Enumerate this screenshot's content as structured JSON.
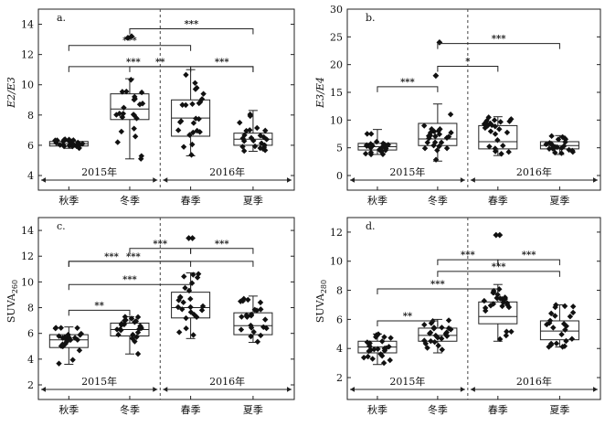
{
  "chart_data": [
    {
      "type": "box",
      "panel_letter": "a.",
      "ylabel": "E2/E3",
      "ylabel_sub": "",
      "ylim": [
        4,
        15
      ],
      "yticks": [
        4,
        6,
        8,
        10,
        12,
        14
      ],
      "categories": [
        "秋季",
        "冬季",
        "春季",
        "夏季"
      ],
      "year_labels": [
        "2015年",
        "2016年"
      ],
      "boxes": [
        {
          "category": "秋季",
          "min": 5.8,
          "q1": 5.95,
          "median": 6.1,
          "q3": 6.25,
          "max": 6.4
        },
        {
          "category": "冬季",
          "min": 5.1,
          "q1": 7.7,
          "median": 8.4,
          "q3": 9.4,
          "max": 10.4
        },
        {
          "category": "春季",
          "min": 5.3,
          "q1": 6.6,
          "median": 7.8,
          "q3": 9.0,
          "max": 11.0
        },
        {
          "category": "夏季",
          "min": 5.6,
          "q1": 6.0,
          "median": 6.4,
          "q3": 6.8,
          "max": 8.3
        }
      ],
      "outliers": [
        {
          "category": "冬季",
          "value": 13.1
        },
        {
          "category": "冬季",
          "value": 13.2
        }
      ],
      "brackets": [
        {
          "from": "冬季",
          "to": "夏季",
          "y": 13.7,
          "label": "***"
        },
        {
          "from": "秋季",
          "to": "春季",
          "y": 12.6,
          "label": "***"
        },
        {
          "from": "秋季",
          "to": "夏季",
          "y": 11.2,
          "label": "***"
        },
        {
          "from": "冬季",
          "to": "春季",
          "y": 11.2,
          "label": "**"
        },
        {
          "from": "春季",
          "to": "夏季",
          "y": 11.2,
          "label": "***"
        }
      ]
    },
    {
      "type": "box",
      "panel_letter": "b.",
      "ylabel": "E3/E4",
      "ylabel_sub": "",
      "ylim": [
        0,
        30
      ],
      "yticks": [
        0,
        5,
        10,
        15,
        20,
        25,
        30
      ],
      "categories": [
        "秋季",
        "冬季",
        "春季",
        "夏季"
      ],
      "year_labels": [
        "2015年",
        "2016年"
      ],
      "boxes": [
        {
          "category": "秋季",
          "min": 3.8,
          "q1": 4.6,
          "median": 5.2,
          "q3": 5.8,
          "max": 8.3
        },
        {
          "category": "冬季",
          "min": 2.6,
          "q1": 5.4,
          "median": 6.6,
          "q3": 9.4,
          "max": 12.9
        },
        {
          "category": "春季",
          "min": 3.6,
          "q1": 4.8,
          "median": 6.1,
          "q3": 9.0,
          "max": 10.6
        },
        {
          "category": "夏季",
          "min": 3.8,
          "q1": 4.8,
          "median": 5.4,
          "q3": 6.1,
          "max": 7.2
        }
      ],
      "outliers": [
        {
          "category": "冬季",
          "value": 18.0
        },
        {
          "category": "冬季",
          "value": 24.0
        }
      ],
      "brackets": [
        {
          "from": "冬季",
          "to": "夏季",
          "y": 23.8,
          "label": "***"
        },
        {
          "from": "冬季",
          "to": "春季",
          "y": 19.7,
          "label": "*"
        },
        {
          "from": "秋季",
          "to": "冬季",
          "y": 16.0,
          "label": "***"
        }
      ]
    },
    {
      "type": "box",
      "panel_letter": "c.",
      "ylabel": "SUVA",
      "ylabel_sub": "260",
      "ylim": [
        2,
        15
      ],
      "yticks": [
        2,
        4,
        6,
        8,
        10,
        12,
        14
      ],
      "categories": [
        "秋季",
        "冬季",
        "春季",
        "夏季"
      ],
      "year_labels": [
        "2015年",
        "2016年"
      ],
      "boxes": [
        {
          "category": "秋季",
          "min": 3.6,
          "q1": 4.9,
          "median": 5.5,
          "q3": 5.9,
          "max": 6.5
        },
        {
          "category": "冬季",
          "min": 4.4,
          "q1": 5.8,
          "median": 6.3,
          "q3": 6.8,
          "max": 7.3
        },
        {
          "category": "春季",
          "min": 5.6,
          "q1": 7.2,
          "median": 8.0,
          "q3": 9.2,
          "max": 10.7
        },
        {
          "category": "夏季",
          "min": 5.3,
          "q1": 5.9,
          "median": 6.6,
          "q3": 7.6,
          "max": 8.9
        }
      ],
      "outliers": [
        {
          "category": "春季",
          "value": 13.4
        },
        {
          "category": "春季",
          "value": 13.4
        }
      ],
      "brackets": [
        {
          "from": "冬季",
          "to": "春季",
          "y": 12.6,
          "label": "***"
        },
        {
          "from": "春季",
          "to": "夏季",
          "y": 12.6,
          "label": "***"
        },
        {
          "from": "秋季",
          "to": "春季",
          "y": 11.6,
          "label": "***"
        },
        {
          "from": "秋季",
          "to": "夏季",
          "y": 11.6,
          "label": "***"
        },
        {
          "from": "秋季",
          "to": "春季",
          "y": 9.8,
          "label": "***"
        },
        {
          "from": "秋季",
          "to": "冬季",
          "y": 7.8,
          "label": "**"
        }
      ]
    },
    {
      "type": "box",
      "panel_letter": "d.",
      "ylabel": "SUVA",
      "ylabel_sub": "280",
      "ylim": [
        1.5,
        13
      ],
      "yticks": [
        2,
        4,
        6,
        8,
        10,
        12
      ],
      "categories": [
        "秋季",
        "冬季",
        "春季",
        "夏季"
      ],
      "year_labels": [
        "2015年",
        "2016年"
      ],
      "boxes": [
        {
          "category": "秋季",
          "min": 2.9,
          "q1": 3.7,
          "median": 4.1,
          "q3": 4.5,
          "max": 5.0
        },
        {
          "category": "冬季",
          "min": 3.7,
          "q1": 4.5,
          "median": 4.9,
          "q3": 5.4,
          "max": 6.0
        },
        {
          "category": "春季",
          "min": 4.5,
          "q1": 5.7,
          "median": 6.2,
          "q3": 7.2,
          "max": 8.4
        },
        {
          "category": "夏季",
          "min": 4.1,
          "q1": 4.6,
          "median": 5.2,
          "q3": 5.9,
          "max": 7.0
        }
      ],
      "outliers": [
        {
          "category": "春季",
          "value": 11.8
        },
        {
          "category": "春季",
          "value": 11.8
        }
      ],
      "brackets": [
        {
          "from": "冬季",
          "to": "春季",
          "y": 10.1,
          "label": "***"
        },
        {
          "from": "春季",
          "to": "夏季",
          "y": 10.1,
          "label": "***"
        },
        {
          "from": "冬季",
          "to": "夏季",
          "y": 9.3,
          "label": "***"
        },
        {
          "from": "秋季",
          "to": "春季",
          "y": 8.1,
          "label": "***"
        },
        {
          "from": "秋季",
          "to": "冬季",
          "y": 5.9,
          "label": "**"
        }
      ]
    }
  ]
}
